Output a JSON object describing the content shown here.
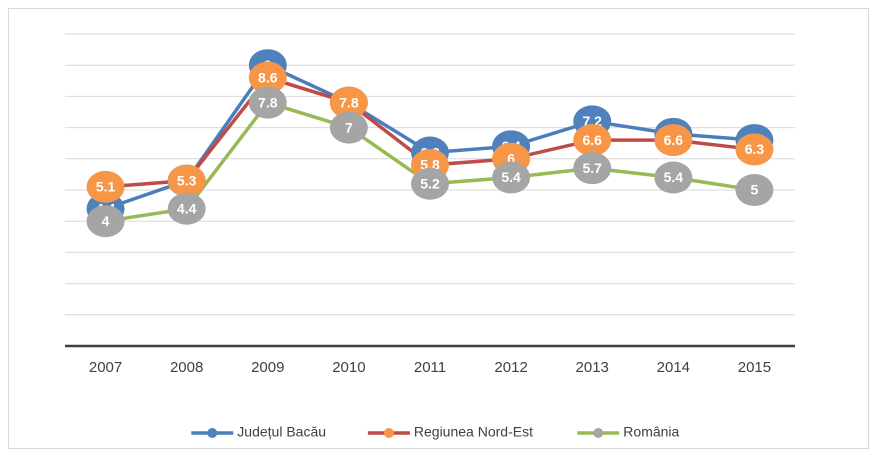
{
  "chart_data": {
    "type": "line",
    "categories": [
      "2007",
      "2008",
      "2009",
      "2010",
      "2011",
      "2012",
      "2013",
      "2014",
      "2015"
    ],
    "series": [
      {
        "name": "Județul Bacău",
        "color": "#4a7ebb",
        "marker_color": "#4f81bd",
        "values": [
          4.4,
          5.3,
          9,
          7.8,
          6.2,
          6.4,
          7.2,
          6.8,
          6.6
        ]
      },
      {
        "name": "Regiunea Nord-Est",
        "color": "#be4b48",
        "marker_color": "#f79646",
        "values": [
          5.1,
          5.3,
          8.6,
          7.8,
          5.8,
          6,
          6.6,
          6.6,
          6.3
        ]
      },
      {
        "name": "România",
        "color": "#98b954",
        "marker_color": "#a5a5a5",
        "values": [
          4,
          4.4,
          7.8,
          7,
          5.2,
          5.4,
          5.7,
          5.4,
          5
        ]
      }
    ],
    "ylim": [
      0,
      10
    ],
    "yticks": [
      0,
      1,
      2,
      3,
      4,
      5,
      6,
      7,
      8,
      9,
      10
    ],
    "grid": true,
    "legend": "bottom"
  }
}
